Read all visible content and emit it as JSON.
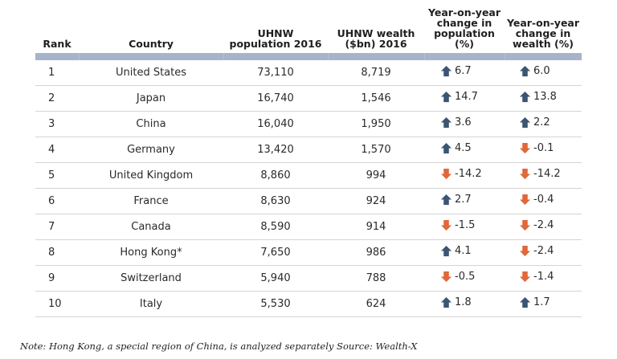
{
  "colors": {
    "up": "#3b5573",
    "down": "#e0683a",
    "header_bar": "#a7b3c8",
    "row_divider": "#d4d4d4"
  },
  "table": {
    "headers": {
      "rank": "Rank",
      "country": "Country",
      "population": [
        "UHNW",
        "population 2016"
      ],
      "wealth": [
        "UHNW wealth",
        "($bn) 2016"
      ],
      "change_population": [
        "Year-on-year",
        "change in",
        "population",
        "(%)"
      ],
      "change_wealth": [
        "Year-on-year",
        "change in",
        "wealth (%)"
      ]
    },
    "rows": [
      {
        "rank": "1",
        "country": "United States",
        "population": "73,110",
        "wealth": "8,719",
        "change_population": "6.7",
        "change_population_dir": "up",
        "change_wealth": "6.0",
        "change_wealth_dir": "up"
      },
      {
        "rank": "2",
        "country": "Japan",
        "population": "16,740",
        "wealth": "1,546",
        "change_population": "14.7",
        "change_population_dir": "up",
        "change_wealth": "13.8",
        "change_wealth_dir": "up"
      },
      {
        "rank": "3",
        "country": "China",
        "population": "16,040",
        "wealth": "1,950",
        "change_population": "3.6",
        "change_population_dir": "up",
        "change_wealth": "2.2",
        "change_wealth_dir": "up"
      },
      {
        "rank": "4",
        "country": "Germany",
        "population": "13,420",
        "wealth": "1,570",
        "change_population": "4.5",
        "change_population_dir": "up",
        "change_wealth": "-0.1",
        "change_wealth_dir": "down"
      },
      {
        "rank": "5",
        "country": "United Kingdom",
        "population": "8,860",
        "wealth": "994",
        "change_population": "-14.2",
        "change_population_dir": "down",
        "change_wealth": "-14.2",
        "change_wealth_dir": "down"
      },
      {
        "rank": "6",
        "country": "France",
        "population": "8,630",
        "wealth": "924",
        "change_population": "2.7",
        "change_population_dir": "up",
        "change_wealth": "-0.4",
        "change_wealth_dir": "down"
      },
      {
        "rank": "7",
        "country": "Canada",
        "population": "8,590",
        "wealth": "914",
        "change_population": "-1.5",
        "change_population_dir": "down",
        "change_wealth": "-2.4",
        "change_wealth_dir": "down"
      },
      {
        "rank": "8",
        "country": "Hong Kong*",
        "population": "7,650",
        "wealth": "986",
        "change_population": "4.1",
        "change_population_dir": "up",
        "change_wealth": "-2.4",
        "change_wealth_dir": "down"
      },
      {
        "rank": "9",
        "country": "Switzerland",
        "population": "5,940",
        "wealth": "788",
        "change_population": "-0.5",
        "change_population_dir": "down",
        "change_wealth": "-1.4",
        "change_wealth_dir": "down"
      },
      {
        "rank": "10",
        "country": "Italy",
        "population": "5,530",
        "wealth": "624",
        "change_population": "1.8",
        "change_population_dir": "up",
        "change_wealth": "1.7",
        "change_wealth_dir": "up"
      }
    ]
  },
  "note": "Note: Hong Kong, a special region of China, is analyzed separately Source: Wealth-X",
  "chart_data": {
    "type": "table",
    "title": "",
    "columns": [
      "Rank",
      "Country",
      "UHNW population 2016",
      "UHNW wealth ($bn) 2016",
      "Year-on-year change in population (%)",
      "Year-on-year change in wealth (%)"
    ],
    "rows": [
      [
        1,
        "United States",
        73110,
        8719,
        6.7,
        6.0
      ],
      [
        2,
        "Japan",
        16740,
        1546,
        14.7,
        13.8
      ],
      [
        3,
        "China",
        16040,
        1950,
        3.6,
        2.2
      ],
      [
        4,
        "Germany",
        13420,
        1570,
        4.5,
        -0.1
      ],
      [
        5,
        "United Kingdom",
        8860,
        994,
        -14.2,
        -14.2
      ],
      [
        6,
        "France",
        8630,
        924,
        2.7,
        -0.4
      ],
      [
        7,
        "Canada",
        8590,
        914,
        -1.5,
        -2.4
      ],
      [
        8,
        "Hong Kong*",
        7650,
        986,
        4.1,
        -2.4
      ],
      [
        9,
        "Switzerland",
        5940,
        788,
        -0.5,
        -1.4
      ],
      [
        10,
        "Italy",
        5530,
        624,
        1.8,
        1.7
      ]
    ],
    "annotations": [
      "Note: Hong Kong, a special region of China, is analyzed separately Source: Wealth-X"
    ]
  }
}
